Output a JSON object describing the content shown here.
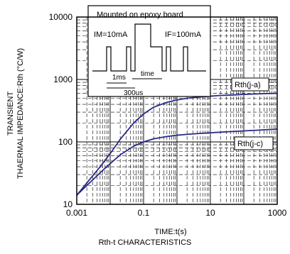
{
  "chart_data": {
    "type": "line",
    "xlabel": "TIME:t(s)",
    "ylabel_lines": [
      "TRANSIENT",
      "THAERMAL IMPEDANCE:Rth (°C/W)"
    ],
    "caption": "Rth-t CHARACTERISTICS",
    "xscale": "log",
    "yscale": "log",
    "xlim": [
      0.001,
      1000
    ],
    "ylim": [
      10,
      10000
    ],
    "x_ticks": [
      "0.001",
      "0.1",
      "10",
      "1000"
    ],
    "y_ticks": [
      "10",
      "100",
      "1000",
      "10000"
    ],
    "grid": true,
    "series": [
      {
        "name": "Rth(j-a)",
        "color": "#2a2a86",
        "x": [
          0.001,
          0.002,
          0.005,
          0.01,
          0.02,
          0.05,
          0.1,
          0.2,
          0.5,
          1,
          2,
          5,
          10,
          20,
          50,
          100,
          200,
          500,
          1000
        ],
        "y": [
          14,
          22,
          40,
          65,
          110,
          200,
          280,
          360,
          430,
          470,
          500,
          525,
          540,
          555,
          565,
          575,
          585,
          595,
          600
        ]
      },
      {
        "name": "Rth(j-c)",
        "color": "#2a2a86",
        "x": [
          0.001,
          0.002,
          0.005,
          0.01,
          0.02,
          0.05,
          0.1,
          0.2,
          0.5,
          1,
          2,
          5,
          10,
          20,
          50,
          100,
          200,
          500,
          1000
        ],
        "y": [
          14,
          20,
          32,
          45,
          62,
          85,
          100,
          112,
          122,
          128,
          132,
          137,
          140,
          143,
          147,
          150,
          153,
          157,
          160
        ]
      }
    ],
    "inset": {
      "title": "Mounted on epoxy board",
      "label_im": "IM=10mA",
      "label_if": "IF=100mA",
      "label_1ms": "1ms",
      "label_time": "time",
      "label_300us": "300us"
    }
  }
}
